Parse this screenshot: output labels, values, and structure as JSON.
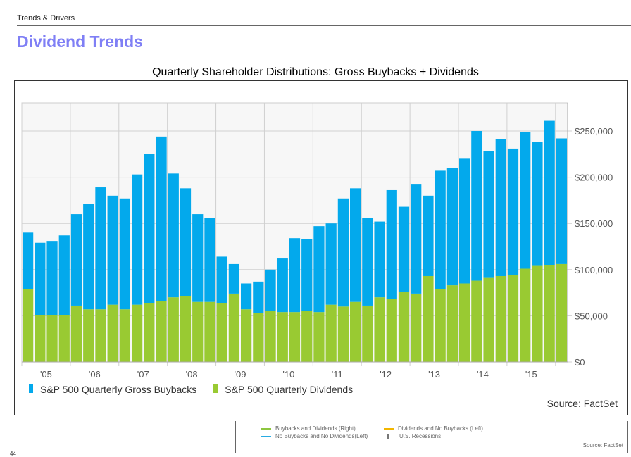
{
  "header": {
    "breadcrumb": "Trends & Drivers",
    "title": "Dividend Trends"
  },
  "chart_data": {
    "type": "bar",
    "stacked": true,
    "title": "Quarterly Shareholder Distributions: Gross Buybacks + Dividends",
    "xlabel": "",
    "ylabel": "",
    "ylim": [
      0,
      275000
    ],
    "yticks": [
      "$0",
      "$50,000",
      "$100,000",
      "$150,000",
      "$200,000",
      "$250,000"
    ],
    "ytick_values": [
      0,
      50000,
      100000,
      150000,
      200000,
      250000
    ],
    "xtick_labels": [
      "'05",
      "'06",
      "'07",
      "'08",
      "'09",
      "'10",
      "'11",
      "'12",
      "'13",
      "'14",
      "'15"
    ],
    "grid": true,
    "legend_position": "bottom-left",
    "source": "Source: FactSet",
    "series": [
      {
        "name": "S&P 500 Quarterly Dividends",
        "color": "#99ca32",
        "values": [
          79000,
          51000,
          51000,
          51000,
          61000,
          57000,
          57000,
          62000,
          57000,
          62000,
          64000,
          66000,
          70000,
          71000,
          65000,
          65000,
          64000,
          74000,
          57000,
          53000,
          55000,
          54000,
          54000,
          55000,
          54000,
          62000,
          60000,
          65000,
          61000,
          70000,
          68000,
          76000,
          74000,
          93000,
          79000,
          83000,
          85000,
          88000,
          91000,
          93000,
          94000,
          101000,
          104000,
          105000
        ]
      },
      {
        "name": "S&P 500 Quarterly Gross Buybacks",
        "color": "#03a9ec",
        "values": [
          61000,
          78000,
          80000,
          86000,
          99000,
          114000,
          132000,
          118000,
          120000,
          141000,
          161000,
          178000,
          134000,
          117000,
          95000,
          91000,
          50000,
          32000,
          28000,
          34000,
          45000,
          58000,
          80000,
          78000,
          93000,
          88000,
          117000,
          123000,
          95000,
          82000,
          118000,
          92000,
          118000,
          87000,
          128000,
          127000,
          135000,
          162000,
          137000,
          148000,
          137000,
          148000,
          134000,
          156000
        ]
      }
    ],
    "extra_bar": {
      "dividends": 106000,
      "buybacks": 136000
    }
  },
  "legend": {
    "items": [
      "S&P 500 Quarterly Gross Buybacks",
      "S&P 500 Quarterly Dividends"
    ]
  },
  "legend2": {
    "items": [
      "Buybacks and Dividends (Right)",
      "Dividends and No Buybacks (Left)",
      "No Buybacks and No Dividends(Left)",
      "U.S. Recessions"
    ],
    "colors": [
      "#8dc63f",
      "#f2b600",
      "#29abe2",
      "#777777"
    ],
    "source": "Source: FactSet"
  },
  "page_number": "44"
}
